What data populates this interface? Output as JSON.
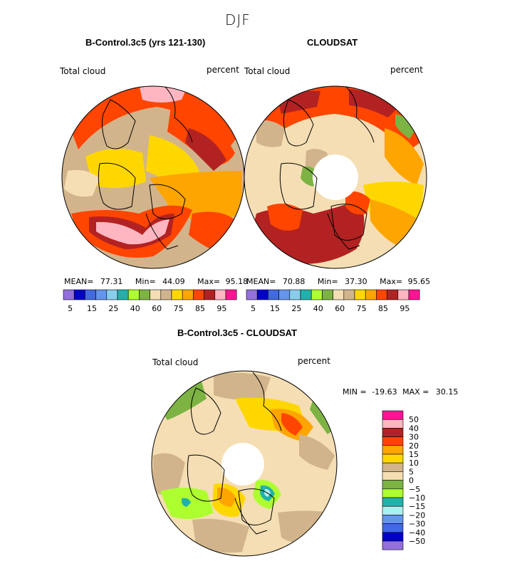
{
  "figure": {
    "season": "DJF",
    "diff_stats": {
      "min_label": "MIN =",
      "min": "-19.63",
      "max_label": "MAX =",
      "max": "30.15"
    }
  },
  "chart_data": [
    {
      "type": "contour-map",
      "projection": "north-polar-stereographic",
      "title": "B-Control.3c5 (yrs 121-130)",
      "variable": "Total cloud",
      "units": "percent",
      "stats": {
        "mean_label": "MEAN=",
        "mean": "77.31",
        "min_label": "Min=",
        "min": "44.09",
        "max_label": "Max=",
        "max": "95.18"
      },
      "colorbar_ticks": [
        "5",
        "15",
        "25",
        "40",
        "60",
        "75",
        "85",
        "95"
      ],
      "colorbar_colors": [
        "#9370db",
        "#0000cd",
        "#4169e1",
        "#6495ed",
        "#87ceeb",
        "#20b2aa",
        "#adff2f",
        "#7cb342",
        "#f5deb3",
        "#d2b48c",
        "#ffd700",
        "#ffa500",
        "#ff4500",
        "#b22222",
        "#ffb6c1",
        "#ff1493"
      ]
    },
    {
      "type": "contour-map",
      "projection": "north-polar-stereographic",
      "title": "CLOUDSAT",
      "variable": "Total cloud",
      "units": "percent",
      "stats": {
        "mean_label": "MEAN=",
        "mean": "70.88",
        "min_label": "Min=",
        "min": "37.30",
        "max_label": "Max=",
        "max": "95.65"
      },
      "colorbar_ticks": [
        "5",
        "15",
        "25",
        "40",
        "60",
        "75",
        "85",
        "95"
      ],
      "colorbar_colors": [
        "#9370db",
        "#0000cd",
        "#4169e1",
        "#6495ed",
        "#87ceeb",
        "#20b2aa",
        "#adff2f",
        "#7cb342",
        "#f5deb3",
        "#d2b48c",
        "#ffd700",
        "#ffa500",
        "#ff4500",
        "#b22222",
        "#ffb6c1",
        "#ff1493"
      ]
    },
    {
      "type": "contour-map",
      "projection": "north-polar-stereographic",
      "title": "B-Control.3c5 - CLOUDSAT",
      "variable": "Total cloud",
      "units": "percent",
      "colorbar_orientation": "vertical",
      "colorbar_ticks": [
        "50",
        "40",
        "30",
        "20",
        "15",
        "10",
        "5",
        "0",
        "−5",
        "−10",
        "−15",
        "−20",
        "−30",
        "−40",
        "−50"
      ],
      "colorbar_colors": [
        "#ff1493",
        "#ffb6c1",
        "#b22222",
        "#ff4500",
        "#ffa500",
        "#ffd700",
        "#d2b48c",
        "#f5deb3",
        "#7cb342",
        "#adff2f",
        "#20b2aa",
        "#afeeee",
        "#6495ed",
        "#4169e1",
        "#0000cd",
        "#9370db"
      ]
    }
  ]
}
